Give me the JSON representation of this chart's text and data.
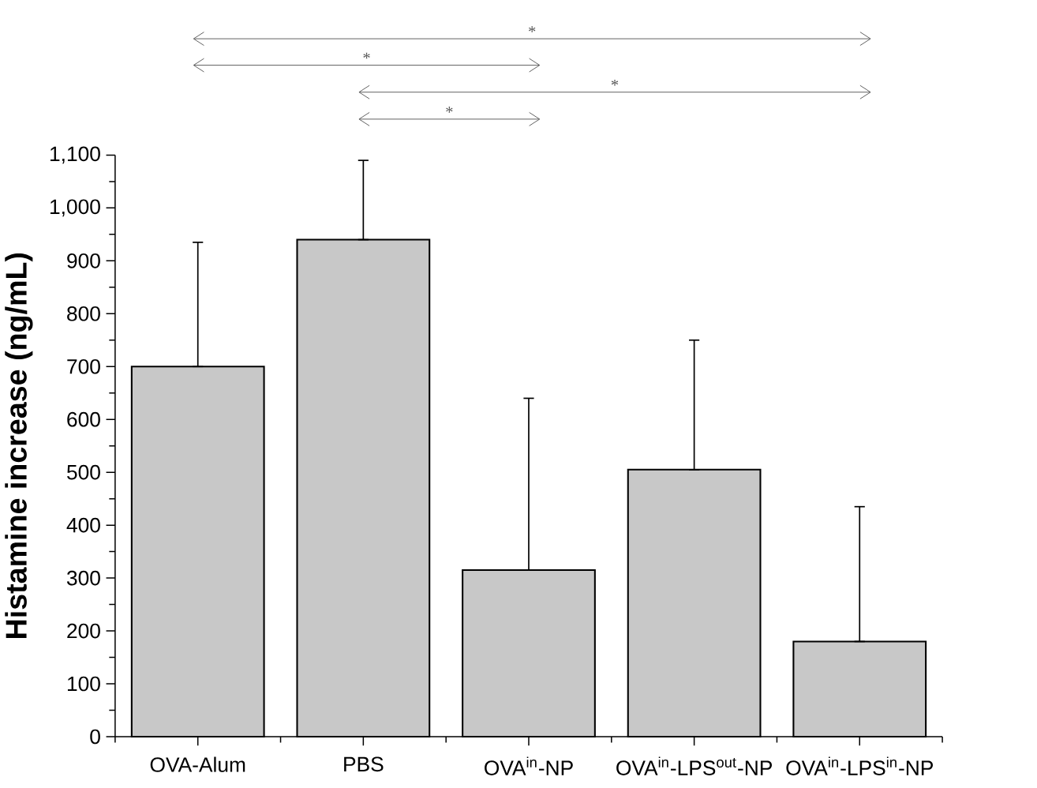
{
  "chart_data": {
    "type": "bar",
    "ylabel": "Histamine increase (ng/mL)",
    "categories": [
      "OVA-Alum",
      "PBS",
      "OVA$^{in}$-NP",
      "OVA$^{in}$-LPS$^{out}$-NP",
      "OVA$^{in}$-LPS$^{in}$-NP"
    ],
    "values": [
      700,
      940,
      315,
      505,
      180
    ],
    "errors": [
      [
        700,
        935
      ],
      [
        940,
        1090
      ],
      [
        315,
        640
      ],
      [
        505,
        750
      ],
      [
        180,
        435
      ]
    ],
    "color": "#c8c8c8",
    "ylim": [
      0,
      1100
    ],
    "yticks": [
      0,
      100,
      200,
      300,
      400,
      500,
      600,
      700,
      800,
      900,
      {
        "value": 1000,
        "label": "1,000"
      },
      {
        "value": 1100,
        "label": "1,100"
      }
    ],
    "annotations": [
      "*",
      "*",
      "*",
      "*"
    ]
  }
}
